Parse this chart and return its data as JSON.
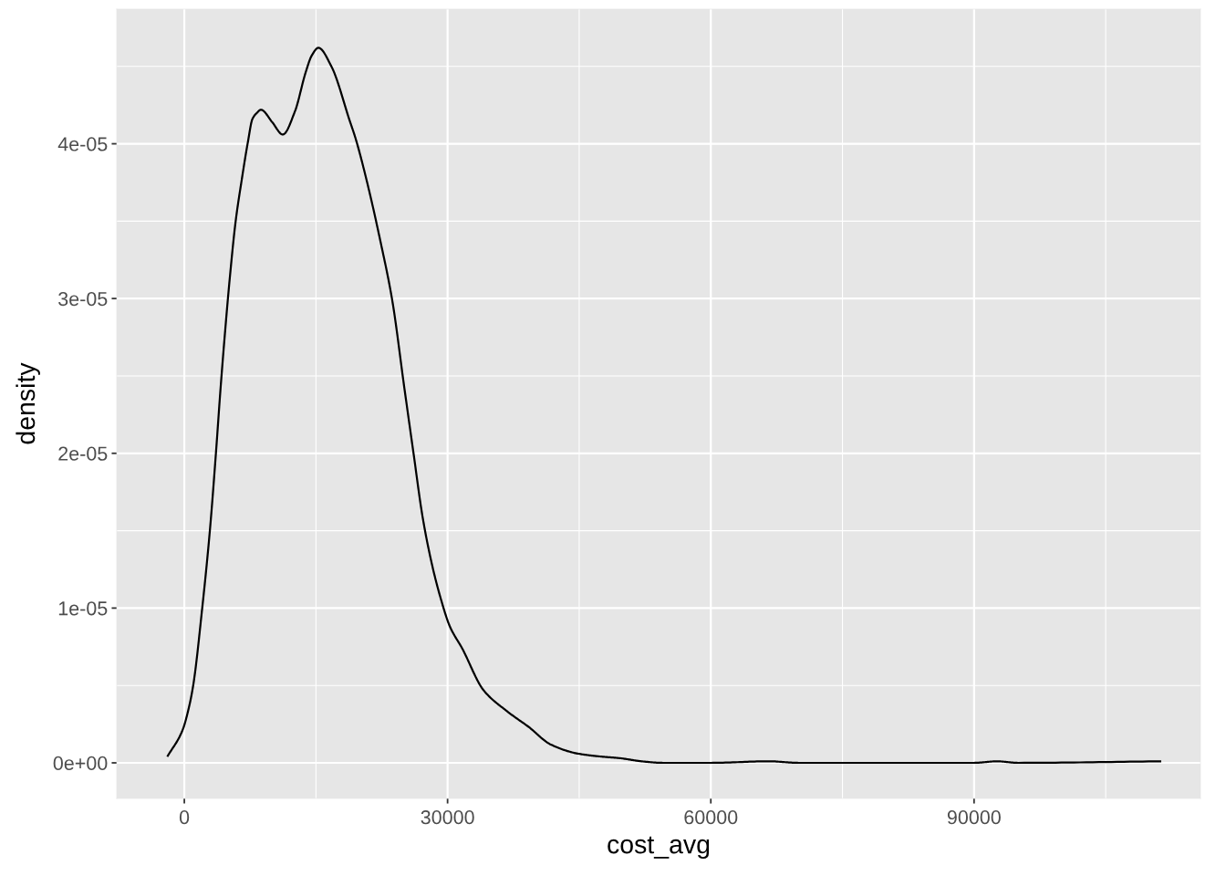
{
  "chart_data": {
    "type": "line",
    "xlabel": "cost_avg",
    "ylabel": "density",
    "x": [
      -1940,
      -210,
      490,
      1010,
      2040,
      2910,
      3600,
      4130,
      4650,
      5160,
      5850,
      6550,
      7240,
      7760,
      8280,
      8730,
      10010,
      11220,
      12610,
      13820,
      14520,
      15280,
      16760,
      18840,
      19540,
      20920,
      22310,
      23690,
      25080,
      26120,
      27150,
      28190,
      29230,
      30270,
      31660,
      34090,
      36860,
      39290,
      41710,
      44820,
      47590,
      49670,
      52090,
      54530,
      60000,
      66640,
      70000,
      90000,
      92620,
      95000,
      111330
    ],
    "series": [
      {
        "color": "#000000",
        "values": [
          4e-07,
          2.1e-06,
          3.5e-06,
          5e-06,
          1e-05,
          1.5e-05,
          2e-05,
          2.42e-05,
          2.79e-05,
          3.12e-05,
          3.5e-05,
          3.77e-05,
          4.01e-05,
          4.16e-05,
          4.2e-05,
          4.22e-05,
          4.14e-05,
          4.06e-05,
          4.21e-05,
          4.46e-05,
          4.57e-05,
          4.62e-05,
          4.5e-05,
          4.15e-05,
          4.03e-05,
          3.73e-05,
          3.38e-05,
          2.99e-05,
          2.42e-05,
          2e-05,
          1.59e-05,
          1.29e-05,
          1.06e-05,
          8.8e-06,
          7.4e-06,
          4.7e-06,
          3.3e-06,
          2.3e-06,
          1.2e-06,
          6e-07,
          4e-07,
          3e-07,
          1e-07,
          0,
          0,
          1e-07,
          0,
          0,
          1e-07,
          0,
          1e-07
        ]
      }
    ],
    "xlim": [
      -7700,
      115800
    ],
    "xticks": [
      0,
      30000,
      60000,
      90000
    ],
    "ylim": [
      -2.3e-06,
      4.87e-05
    ],
    "yticks": [
      {
        "value": 0,
        "label": "0e+00"
      },
      {
        "value": 1e-05,
        "label": "1e-05"
      },
      {
        "value": 2e-05,
        "label": "2e-05"
      },
      {
        "value": 3e-05,
        "label": "3e-05"
      },
      {
        "value": 4e-05,
        "label": "4e-05"
      }
    ],
    "grid": true
  }
}
